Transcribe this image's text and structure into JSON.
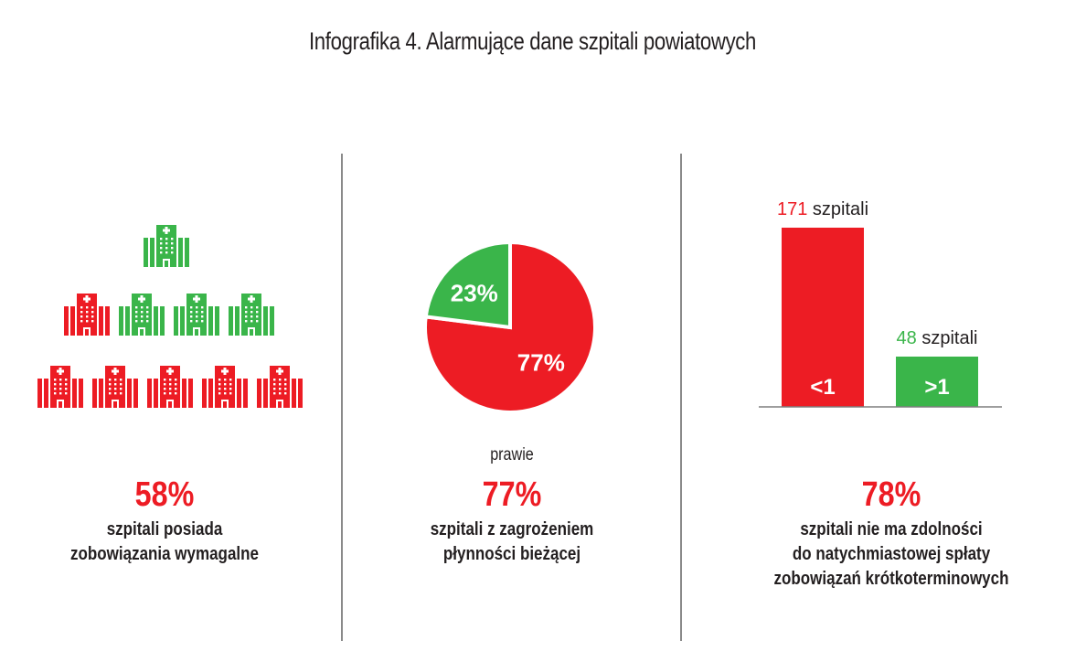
{
  "title": "Infografika 4. Alarmujące dane szpitali powiatowych",
  "colors": {
    "red": "#ed1c24",
    "green": "#3ab54a",
    "text": "#231f20",
    "axis": "#7f7f7f"
  },
  "icons": {
    "name": "hospital-building-icon",
    "rows": [
      [
        "green"
      ],
      [
        "red",
        "green",
        "green",
        "green"
      ],
      [
        "red",
        "red",
        "red",
        "red",
        "red"
      ]
    ]
  },
  "panel1": {
    "value": "58%",
    "desc_line1": "szpitali posiada",
    "desc_line2": "zobowiązania wymagalne"
  },
  "panel2": {
    "prefix": "prawie",
    "value": "77%",
    "desc_line1": "szpitali z zagrożeniem",
    "desc_line2": "płynności bieżącej"
  },
  "panel3": {
    "value": "78%",
    "desc_line1": "szpitali nie ma zdolności",
    "desc_line2": "do natychmiastowej spłaty",
    "desc_line3": "zobowiązań krótkoterminowych"
  },
  "chart_data": [
    {
      "type": "pie",
      "categories": [
        "77%",
        "23%"
      ],
      "values": [
        77,
        23
      ],
      "colors": [
        "#ed1c24",
        "#3ab54a"
      ]
    },
    {
      "type": "bar",
      "categories": [
        "<1",
        ">1"
      ],
      "values": [
        171,
        48
      ],
      "value_labels": [
        "171",
        "48"
      ],
      "value_suffix": "szpitali",
      "colors": [
        "#ed1c24",
        "#3ab54a"
      ],
      "ylim": [
        0,
        171
      ]
    }
  ]
}
